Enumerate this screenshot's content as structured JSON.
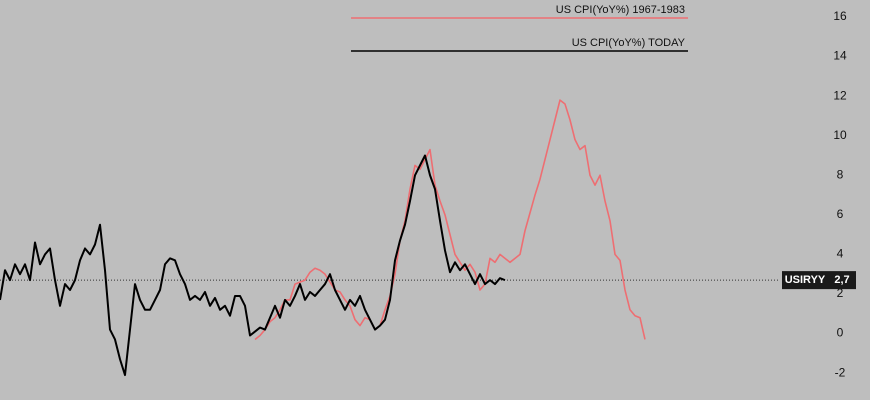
{
  "chart_data": {
    "type": "line",
    "ylim": [
      -3.36,
      16.86
    ],
    "yticks": [
      -2,
      0,
      2,
      4,
      6,
      8,
      10,
      12,
      14,
      16
    ],
    "series": [
      {
        "name": "US CPI(YoY%) 1967-1983",
        "color": "#ee6e72",
        "values": [
          null,
          null,
          null,
          null,
          null,
          null,
          null,
          null,
          null,
          null,
          null,
          null,
          null,
          null,
          null,
          null,
          null,
          null,
          null,
          null,
          null,
          null,
          null,
          null,
          null,
          null,
          null,
          null,
          null,
          null,
          null,
          null,
          null,
          null,
          null,
          null,
          null,
          null,
          null,
          null,
          null,
          null,
          null,
          null,
          null,
          null,
          null,
          null,
          null,
          null,
          null,
          -0.3,
          -0.1,
          0.2,
          0.6,
          0.8,
          1.2,
          1.7,
          1.7,
          2.5,
          2.6,
          2.7,
          3.1,
          3.3,
          3.2,
          3.0,
          2.6,
          2.2,
          2.1,
          1.7,
          1.4,
          0.7,
          0.4,
          0.8,
          0.7,
          0.2,
          0.4,
          1.2,
          1.9,
          3.0,
          4.7,
          5.7,
          7.3,
          8.5,
          8.3,
          8.8,
          9.3,
          7.5,
          6.7,
          6.0,
          5.0,
          4.0,
          3.6,
          3.2,
          3.5,
          3.1,
          2.2,
          2.5,
          3.8,
          3.6,
          4.0,
          3.8,
          3.6,
          3.8,
          4.0,
          5.2,
          6.1,
          7.0,
          7.8,
          8.8,
          9.8,
          10.8,
          11.8,
          11.6,
          10.8,
          9.8,
          9.3,
          9.5,
          8.0,
          7.5,
          8.0,
          6.7,
          5.7,
          4.0,
          3.7,
          2.2,
          1.2,
          0.9,
          0.8,
          -0.3
        ]
      },
      {
        "name": "US CPI(YoY%) TODAY",
        "color": "#000000",
        "values": [
          1.7,
          3.2,
          2.7,
          3.5,
          3.0,
          3.5,
          2.7,
          4.6,
          3.5,
          4.0,
          4.3,
          2.7,
          1.4,
          2.5,
          2.2,
          2.7,
          3.7,
          4.3,
          4.0,
          4.5,
          5.5,
          3.2,
          0.2,
          -0.3,
          -1.3,
          -2.1,
          0.2,
          2.5,
          1.7,
          1.2,
          1.2,
          1.7,
          2.2,
          3.5,
          3.8,
          3.7,
          3.0,
          2.5,
          1.7,
          1.9,
          1.7,
          2.1,
          1.4,
          1.8,
          1.2,
          1.4,
          0.9,
          1.9,
          1.9,
          1.4,
          -0.1,
          0.1,
          0.3,
          0.2,
          0.8,
          1.4,
          0.8,
          1.7,
          1.4,
          1.9,
          2.5,
          1.7,
          2.1,
          1.9,
          2.2,
          2.5,
          3.0,
          2.2,
          1.7,
          1.2,
          1.7,
          1.4,
          1.9,
          1.2,
          0.7,
          0.2,
          0.4,
          0.7,
          1.7,
          3.7,
          4.7,
          5.5,
          6.7,
          8.0,
          8.5,
          9.0,
          8.0,
          7.3,
          5.7,
          4.2,
          3.1,
          3.6,
          3.2,
          3.5,
          3.0,
          2.5,
          3.0,
          2.5,
          2.7,
          2.5,
          2.8,
          2.7,
          null,
          null,
          null,
          null,
          null,
          null,
          null,
          null,
          null,
          null,
          null,
          null,
          null,
          null,
          null,
          null,
          null,
          null,
          null,
          null,
          null,
          null,
          null,
          null,
          null,
          null
        ]
      }
    ],
    "current": {
      "name": "USIRYY",
      "value": 2.7,
      "label": "2,7"
    }
  }
}
